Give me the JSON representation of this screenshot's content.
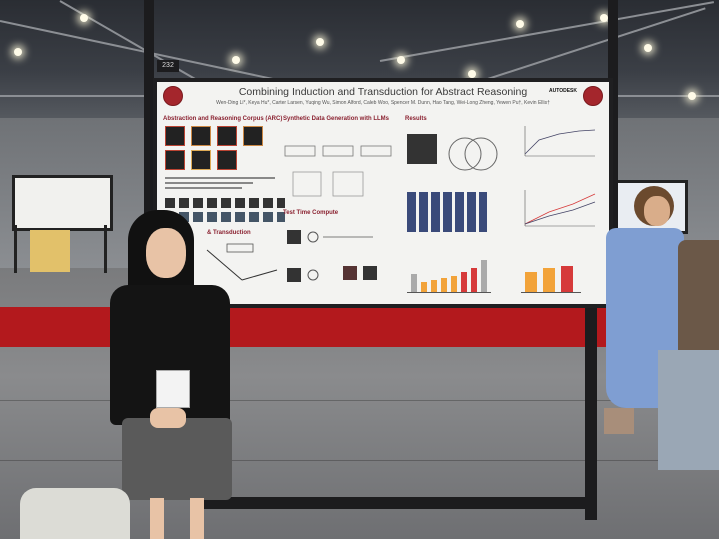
{
  "booth_number": "232",
  "poster": {
    "title": "Combining Induction and Transduction for Abstract Reasoning",
    "authors": "Wen-Ding Li*, Keya Hu*, Carter Larsen, Yuqing Wu, Simon Alford, Caleb Woo, Spencer M. Dunn, Hao Tang, Wei-Long Zheng, Yewen Pu†, Kevin Ellis†",
    "sponsor_logo_text": "AUTODESK",
    "sections": {
      "arc": "Abstraction and Reasoning Corpus (ARC)",
      "induction_transduction": "& Transduction",
      "synthetic": "Synthetic Data Generation with LLMs",
      "test_time": "Test Time Compute",
      "results": "Results"
    }
  },
  "colors": {
    "carpet": "#b3191d",
    "poster_accent": "#8a2130",
    "bar_orange": "#f2a33a",
    "bar_red": "#d63a3a"
  }
}
